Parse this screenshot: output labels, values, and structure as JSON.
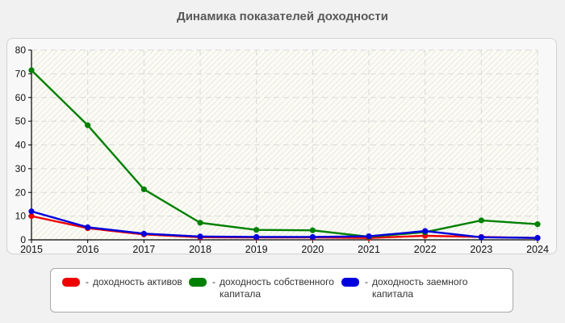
{
  "page": {
    "title": "Динамика показателей доходности"
  },
  "chart_data": {
    "type": "line",
    "title": "Динамика показателей доходности",
    "x": [
      2015,
      2016,
      2017,
      2018,
      2019,
      2020,
      2021,
      2022,
      2023,
      2024
    ],
    "series": [
      {
        "name": "доходность активов",
        "color": "#ee0000",
        "marker": "circle",
        "values": [
          10.0,
          4.9,
          2.3,
          1.1,
          1.0,
          1.0,
          0.8,
          1.7,
          1.2,
          0.8
        ]
      },
      {
        "name": "доходность собственного капитала",
        "color": "#008000",
        "marker": "circle",
        "values": [
          71.5,
          48.3,
          21.3,
          7.2,
          4.2,
          4.0,
          1.3,
          3.2,
          8.2,
          6.6
        ]
      },
      {
        "name": "доходность заемного капитала",
        "color": "#0000dd",
        "marker": "circle",
        "values": [
          12.0,
          5.3,
          2.6,
          1.4,
          1.2,
          1.2,
          1.5,
          3.7,
          1.1,
          0.8
        ]
      }
    ],
    "ylim": [
      0,
      80
    ],
    "ytick_step": 10,
    "yticks": [
      0,
      10,
      20,
      30,
      40,
      50,
      60,
      70,
      80
    ],
    "grid": true,
    "legend_position": "bottom",
    "plot_background": "#fcfcf3",
    "hatch_color": "#e7e7e7",
    "gridline_color": "#d9d9d9",
    "axis_color": "#000000",
    "tick_label_color": "#111111"
  },
  "legend": {
    "prefix": "-",
    "items": [
      {
        "label": "доходность активов",
        "color": "#ee0000"
      },
      {
        "label": "доходность собственного капитала",
        "color": "#008000"
      },
      {
        "label": "доходность заемного капитала",
        "color": "#0000dd"
      }
    ]
  }
}
